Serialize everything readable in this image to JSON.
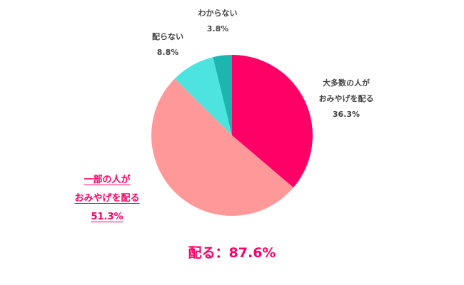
{
  "chart_data": {
    "type": "pie",
    "title": "",
    "categories": [
      "大多数の人がおみやげを配る",
      "一部の人がおみやげを配る",
      "配らない",
      "わからない"
    ],
    "values": [
      36.3,
      51.3,
      8.8,
      3.8
    ],
    "colors": [
      "#ff0066",
      "#ff9999",
      "#4de3de",
      "#1cb5b0"
    ],
    "start_angle": "12 o'clock, clockwise",
    "annotation": "配る：87.6%"
  },
  "labels": {
    "majority": {
      "line1": "大多数の人が",
      "line2": "おみやげを配る",
      "value": "36.3%"
    },
    "some": {
      "line1": "一部の人が",
      "line2": "おみやげを配る",
      "value": "51.3%"
    },
    "no": {
      "line1": "配らない",
      "value": "8.8%"
    },
    "unknown": {
      "line1": "わからない",
      "value": "3.8%"
    }
  },
  "total": "配る：87.6%"
}
